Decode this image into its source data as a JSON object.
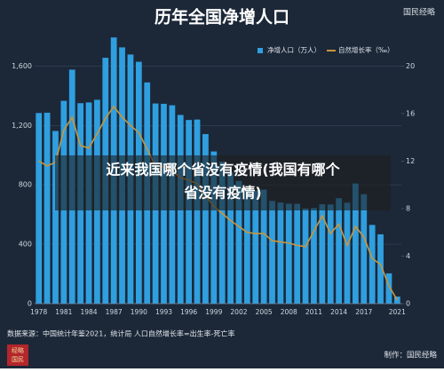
{
  "chart_data": {
    "type": "bar-line",
    "title": "历年全国净增人口",
    "brand": "国民经略",
    "source": "数据来源：中国统计年鉴2021，统计局  人口自然增长率=出生率-死亡率",
    "credit": "制作：国民经略",
    "seal": [
      "经略",
      "国民"
    ],
    "categories": [
      "1978",
      null,
      null,
      "1981",
      null,
      null,
      "1984",
      null,
      null,
      "1987",
      null,
      null,
      "1990",
      null,
      null,
      "1993",
      null,
      null,
      "1996",
      null,
      null,
      "1999",
      null,
      null,
      "2002",
      null,
      null,
      "2005",
      null,
      null,
      "2008",
      null,
      null,
      "2011",
      null,
      null,
      "2014",
      null,
      null,
      "2017",
      null,
      null,
      null,
      "2021"
    ],
    "series": [
      {
        "name": "净增人口（万人）",
        "color": "#2f9fe0",
        "values": [
          1284,
          1286,
          1163,
          1366,
          1576,
          1350,
          1355,
          1373,
          1656,
          1793,
          1726,
          1678,
          1629,
          1490,
          1348,
          1346,
          1336,
          1271,
          1237,
          1240,
          1142,
          1025,
          957,
          884,
          826,
          774,
          761,
          768,
          692,
          681,
          673,
          672,
          641,
          644,
          669,
          668,
          710,
          680,
          809,
          737,
          530,
          467,
          204,
          48
        ]
      },
      {
        "name": "自然增长率（‰）",
        "color": "#c8963c",
        "axis": "y2",
        "values": [
          12.0,
          11.6,
          11.9,
          14.6,
          15.7,
          13.3,
          13.1,
          14.3,
          15.6,
          16.6,
          15.7,
          15.0,
          14.4,
          13.0,
          11.6,
          11.5,
          11.2,
          10.6,
          10.4,
          10.1,
          9.1,
          8.2,
          7.6,
          7.0,
          6.5,
          6.0,
          5.9,
          5.9,
          5.3,
          5.2,
          5.1,
          4.9,
          4.8,
          6.1,
          7.4,
          5.9,
          6.7,
          4.9,
          6.5,
          5.6,
          3.8,
          3.3,
          1.5,
          0.3
        ]
      }
    ],
    "ylim": [
      0,
      1800
    ],
    "yticks": [
      0,
      400,
      800,
      {
        "value": 1200,
        "label": "1,200"
      },
      {
        "value": 1600,
        "label": "1,600"
      }
    ],
    "y2lim": [
      0,
      22.5
    ],
    "y2ticks": [
      0,
      4,
      8,
      12,
      16,
      20
    ]
  },
  "overlay": {
    "lines": [
      "近来我国哪个省没有疫情(我国有哪个",
      "省没有疫情)"
    ]
  }
}
